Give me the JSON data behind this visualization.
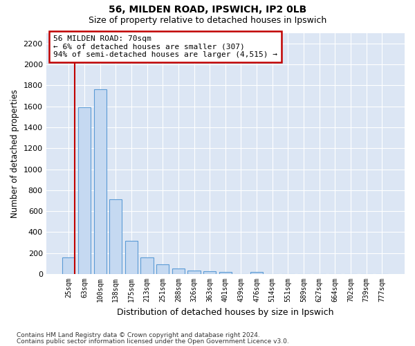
{
  "title1": "56, MILDEN ROAD, IPSWICH, IP2 0LB",
  "title2": "Size of property relative to detached houses in Ipswich",
  "xlabel": "Distribution of detached houses by size in Ipswich",
  "ylabel": "Number of detached properties",
  "categories": [
    "25sqm",
    "63sqm",
    "100sqm",
    "138sqm",
    "175sqm",
    "213sqm",
    "251sqm",
    "288sqm",
    "326sqm",
    "363sqm",
    "401sqm",
    "439sqm",
    "476sqm",
    "514sqm",
    "551sqm",
    "589sqm",
    "627sqm",
    "664sqm",
    "702sqm",
    "739sqm",
    "777sqm"
  ],
  "values": [
    160,
    1590,
    1760,
    710,
    315,
    160,
    90,
    55,
    35,
    25,
    20,
    0,
    20,
    0,
    0,
    0,
    0,
    0,
    0,
    0,
    0
  ],
  "bar_color": "#c5d9f1",
  "bar_edge_color": "#5b9bd5",
  "highlight_line_color": "#c00000",
  "annotation_text": "56 MILDEN ROAD: 70sqm\n← 6% of detached houses are smaller (307)\n94% of semi-detached houses are larger (4,515) →",
  "annotation_box_facecolor": "#ffffff",
  "annotation_box_edgecolor": "#c00000",
  "ylim": [
    0,
    2300
  ],
  "yticks": [
    0,
    200,
    400,
    600,
    800,
    1000,
    1200,
    1400,
    1600,
    1800,
    2000,
    2200
  ],
  "bg_color": "#dce6f4",
  "grid_color": "#ffffff",
  "footnote1": "Contains HM Land Registry data © Crown copyright and database right 2024.",
  "footnote2": "Contains public sector information licensed under the Open Government Licence v3.0."
}
